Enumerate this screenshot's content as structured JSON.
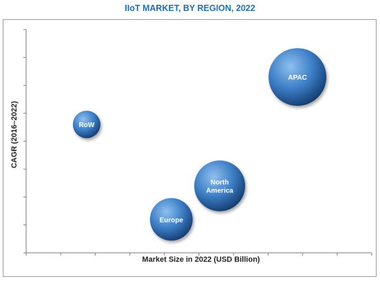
{
  "chart_data": {
    "type": "bubble",
    "title": "IIoT MARKET, BY REGION, 2022",
    "xlabel": "Market Size in 2022 (USD Billion)",
    "ylabel": "CAGR (2016–2022)",
    "xlim": [
      0,
      10
    ],
    "ylim": [
      0,
      8
    ],
    "grid": false,
    "colors": {
      "bubble_light": "#8fc0ee",
      "bubble_mid": "#3d7ec6",
      "bubble_dark": "#163f73",
      "title": "#1f6fb4"
    },
    "series": [
      {
        "label": "RoW",
        "x": 1.75,
        "y": 4.6,
        "size": 1.0
      },
      {
        "label": "North America",
        "x": 5.6,
        "y": 2.4,
        "size": 1.85
      },
      {
        "label": "Europe",
        "x": 4.2,
        "y": 1.2,
        "size": 1.55
      },
      {
        "label": "APAC",
        "x": 7.85,
        "y": 6.3,
        "size": 2.1
      }
    ]
  }
}
